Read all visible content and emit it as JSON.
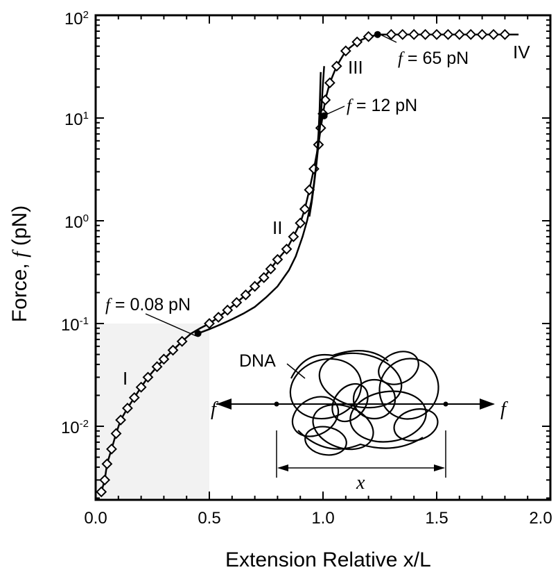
{
  "chart_data": {
    "type": "line",
    "xlabel": "Extension Relative x/L",
    "ylabel": {
      "prefix": "Force, ",
      "symbol": "f",
      "unit": " (pN)"
    },
    "xlim": [
      0,
      2.0
    ],
    "ylim": [
      0.002,
      100
    ],
    "yscale": "log",
    "grid": false,
    "x_ticks": [
      "0.0",
      "0.5",
      "1.0",
      "1.5",
      "2.0"
    ],
    "y_ticks": [
      {
        "base": "10",
        "exp": "2"
      },
      {
        "base": "10",
        "exp": "1"
      },
      {
        "base": "10",
        "exp": "0"
      },
      {
        "base": "10",
        "exp": "-1"
      },
      {
        "base": "10",
        "exp": "-2"
      }
    ],
    "shaded_region": {
      "x": [
        0,
        0.5
      ],
      "y": [
        0.002,
        0.1
      ],
      "color": "#f2f2f2"
    },
    "series": [
      {
        "marker": "diamond",
        "color": "#000000",
        "x": [
          0.025,
          0.04,
          0.05,
          0.07,
          0.09,
          0.11,
          0.14,
          0.17,
          0.2,
          0.23,
          0.27,
          0.3,
          0.34,
          0.38,
          0.42,
          0.46,
          0.5,
          0.54,
          0.58,
          0.62,
          0.66,
          0.7,
          0.74,
          0.77,
          0.8,
          0.84,
          0.87,
          0.9,
          0.92,
          0.94,
          0.96,
          0.98,
          0.99,
          1.0,
          1.01,
          1.03,
          1.06,
          1.1,
          1.15,
          1.2,
          1.25,
          1.3,
          1.35,
          1.4,
          1.45,
          1.5,
          1.55,
          1.6,
          1.65,
          1.7,
          1.75,
          1.8,
          1.86
        ],
        "y": [
          0.0023,
          0.003,
          0.0043,
          0.006,
          0.0085,
          0.0115,
          0.015,
          0.019,
          0.024,
          0.03,
          0.038,
          0.045,
          0.055,
          0.067,
          0.08,
          0.09,
          0.1,
          0.115,
          0.135,
          0.16,
          0.19,
          0.23,
          0.28,
          0.34,
          0.42,
          0.53,
          0.7,
          0.95,
          1.3,
          2.0,
          3.2,
          5.5,
          8.0,
          11.0,
          15.0,
          22.0,
          32.0,
          45.0,
          55.0,
          62.0,
          65.0,
          65.0,
          65.0,
          65.0,
          65.0,
          65.0,
          65.0,
          65.0,
          65.0,
          65.0,
          65.0,
          65.0,
          65.0
        ],
        "draw_marker": [
          1,
          1,
          1,
          1,
          1,
          1,
          1,
          1,
          1,
          1,
          1,
          1,
          1,
          1,
          0,
          0,
          1,
          1,
          1,
          1,
          1,
          1,
          1,
          1,
          1,
          1,
          1,
          1,
          1,
          1,
          1,
          1,
          1,
          1,
          1,
          1,
          1,
          1,
          1,
          1,
          0,
          1,
          1,
          1,
          1,
          1,
          1,
          1,
          1,
          1,
          1,
          1,
          0
        ]
      },
      {
        "marker": "none",
        "color": "#000000",
        "x": [
          0.45,
          0.5,
          0.55,
          0.6,
          0.65,
          0.7,
          0.75,
          0.8,
          0.85,
          0.88,
          0.91,
          0.93,
          0.95,
          0.96,
          0.97,
          0.98,
          0.985,
          0.99
        ],
        "y": [
          0.08,
          0.088,
          0.098,
          0.11,
          0.125,
          0.145,
          0.18,
          0.23,
          0.33,
          0.45,
          0.7,
          1.0,
          1.6,
          2.3,
          3.5,
          7.0,
          12.0,
          28.0
        ]
      },
      {
        "marker": "none",
        "color": "#000000",
        "x": [
          0.94,
          0.95,
          0.96,
          0.97,
          0.98,
          0.99,
          1.0,
          1.005
        ],
        "y": [
          1.1,
          1.5,
          2.2,
          3.4,
          5.5,
          10.0,
          22.0,
          32.0
        ]
      }
    ],
    "key_points": [
      {
        "x": 0.45,
        "y": 0.08,
        "label": "= 0.08 pN"
      },
      {
        "x": 1.005,
        "y": 10.5,
        "label": "= 12 pN"
      },
      {
        "x": 1.24,
        "y": 65.0,
        "label": "= 65 pN"
      }
    ],
    "regions": [
      "I",
      "II",
      "III",
      "IV"
    ],
    "inset": {
      "label": "DNA",
      "force": "f",
      "extension": "x"
    }
  }
}
